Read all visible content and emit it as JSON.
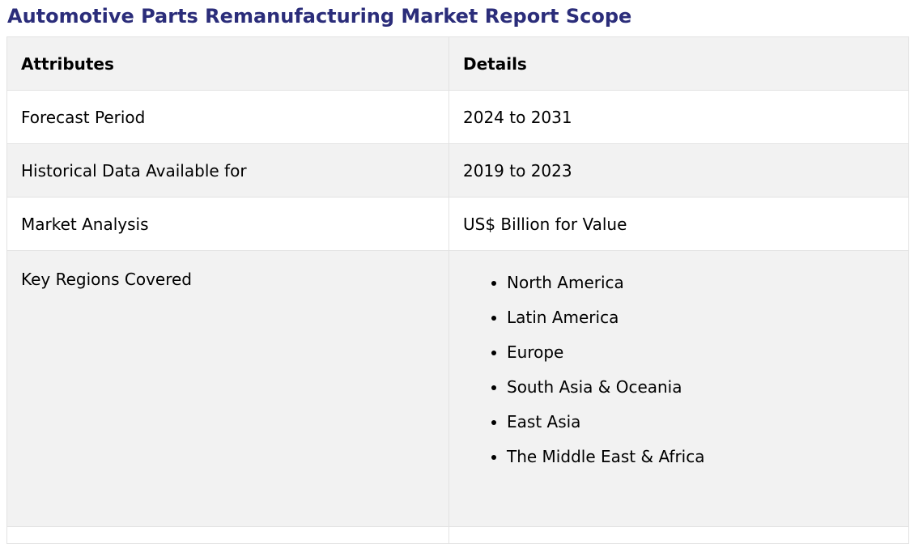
{
  "title": "Automotive Parts Remanufacturing Market Report Scope",
  "table": {
    "headers": [
      "Attributes",
      "Details"
    ],
    "rows": [
      {
        "attribute": "Forecast Period",
        "detail": "2024 to 2031"
      },
      {
        "attribute": "Historical Data Available for",
        "detail": "2019 to 2023"
      },
      {
        "attribute": "Market Analysis",
        "detail": "US$ Billion for Value"
      }
    ],
    "regions": {
      "attribute": "Key Regions Covered",
      "items": [
        "North America",
        "Latin America",
        "Europe",
        "South Asia & Oceania",
        "East Asia",
        "The Middle East & Africa"
      ]
    }
  },
  "colors": {
    "title": "#2b2d7a",
    "header_bg": "#f2f2f2",
    "stripe_bg": "#f2f2f2",
    "border": "#e3e3e3"
  }
}
